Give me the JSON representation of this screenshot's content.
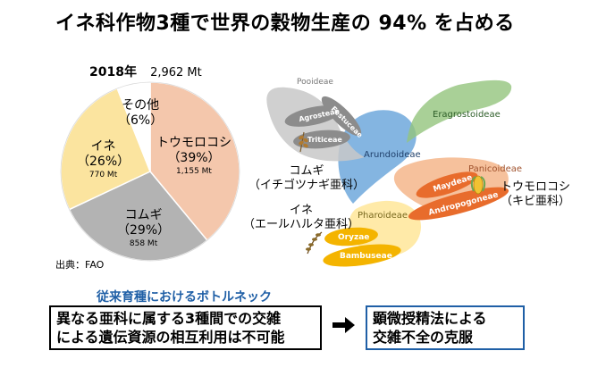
{
  "title": "イネ科作物3種で世界の穀物生産の 94% を占める",
  "chart_data": {
    "type": "pie",
    "year_label": "2018年",
    "total_label": "2,962 Mt",
    "slices": [
      {
        "name": "トウモロコシ",
        "pct_label": "（39%）",
        "value": 39,
        "mt_label": "1,155 Mt",
        "color": "#f4c7ac"
      },
      {
        "name": "コムギ",
        "pct_label": "（29%）",
        "value": 29,
        "mt_label": "858 Mt",
        "color": "#b3b3b3"
      },
      {
        "name": "イネ",
        "pct_label": "（26%）",
        "value": 26,
        "mt_label": "770 Mt",
        "color": "#fbe49f"
      },
      {
        "name": "その他",
        "pct_label": "（6%）",
        "value": 6,
        "mt_label": "",
        "color": "#ffffff"
      }
    ]
  },
  "source": "出典：FAO",
  "diagram": {
    "subfamilies": {
      "pooideae": "Pooideae",
      "arundoideae": "Arundoideae",
      "eragrostoideae": "Eragrostoideae",
      "panicoideae": "Panicoideae",
      "pharoideae": "Pharoideae"
    },
    "tribes": {
      "agrosteae": "Agrosteae",
      "festuceae": "Festuceae",
      "triticeae": "Triticeae",
      "maydeae": "Maydeae",
      "andropogoneae": "Andropogoneae",
      "oryzae": "Oryzae",
      "bambuseae": "Bambuseae"
    },
    "labels": {
      "wheat_line1": "コムギ",
      "wheat_line2": "（イチゴツナギ亜科）",
      "rice_line1": "イネ",
      "rice_line2": "（エールハルタ亜科）",
      "maize_line1": "トウモロコシ",
      "maize_line2": "（キビ亜科）"
    },
    "colors": {
      "pooideae": "#c8c8c8",
      "arundoideae": "#6fa8dc",
      "eragrostoideae": "#93c47d",
      "panicoideae": "#f4b183",
      "pharoideae": "#ffe699",
      "tribe_gray": "#8c8c8c",
      "tribe_orange": "#e86c2c",
      "tribe_yellow": "#f4b400"
    }
  },
  "bottleneck": {
    "title": "従来育種におけるボトルネック",
    "left_line1": "異なる亜科に属する3種間での交雑",
    "left_line2": "による遺伝資源の相互利用は不可能",
    "right_line1": "顕微授精法による",
    "right_line2": "交雑不全の克服"
  }
}
